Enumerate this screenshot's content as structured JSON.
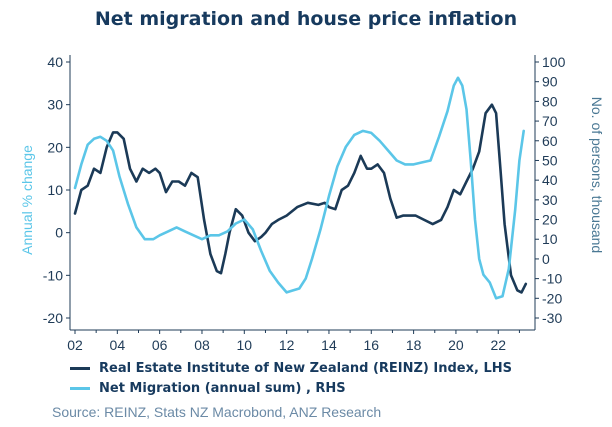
{
  "chart_data": {
    "type": "line",
    "title": "Net migration and house price inflation",
    "ylabel_left": "Annual % change",
    "ylabel_right": "No. of persons, thousand",
    "xlabel": "",
    "x_ticks": [
      "02",
      "04",
      "06",
      "08",
      "10",
      "12",
      "14",
      "16",
      "18",
      "20",
      "22"
    ],
    "xlim": [
      2002,
      2023.5
    ],
    "ylim_left": [
      -20,
      40
    ],
    "ylim_right": [
      -30,
      100
    ],
    "y_ticks_left": [
      40,
      30,
      20,
      10,
      0,
      -10,
      -20
    ],
    "y_ticks_right": [
      100,
      90,
      80,
      70,
      60,
      50,
      40,
      30,
      20,
      10,
      0,
      -10,
      -20,
      -30
    ],
    "grid": false,
    "legend_position": "bottom",
    "series": [
      {
        "name": "Real Estate Institute of New Zealand (REINZ) Index, LHS",
        "axis": "left",
        "color": "#1b3a57",
        "x": [
          2002.0,
          2002.3,
          2002.6,
          2002.9,
          2003.2,
          2003.5,
          2003.8,
          2004.0,
          2004.3,
          2004.6,
          2004.9,
          2005.2,
          2005.5,
          2005.8,
          2006.0,
          2006.3,
          2006.6,
          2006.9,
          2007.2,
          2007.5,
          2007.8,
          2008.1,
          2008.4,
          2008.7,
          2008.9,
          2009.1,
          2009.3,
          2009.6,
          2009.9,
          2010.2,
          2010.5,
          2010.8,
          2011.0,
          2011.3,
          2011.6,
          2012.0,
          2012.5,
          2013.0,
          2013.5,
          2013.8,
          2014.0,
          2014.3,
          2014.6,
          2014.9,
          2015.2,
          2015.5,
          2015.8,
          2016.0,
          2016.3,
          2016.6,
          2016.9,
          2017.2,
          2017.5,
          2017.8,
          2018.1,
          2018.5,
          2018.9,
          2019.3,
          2019.6,
          2019.9,
          2020.2,
          2020.5,
          2020.8,
          2021.1,
          2021.4,
          2021.7,
          2021.9,
          2022.1,
          2022.3,
          2022.6,
          2022.9,
          2023.1,
          2023.3
        ],
        "values": [
          4.5,
          10,
          11,
          15,
          14,
          20,
          23.5,
          23.5,
          22,
          15,
          12,
          15,
          14,
          15,
          14,
          9.5,
          12,
          12,
          11,
          14,
          13,
          3,
          -5,
          -9,
          -9.5,
          -5,
          0,
          5.5,
          4,
          0,
          -2,
          -1,
          0,
          2,
          3,
          4,
          6,
          7,
          6.5,
          7,
          6,
          5.5,
          10,
          11,
          14,
          18,
          15,
          15,
          16,
          14,
          8,
          3.5,
          4,
          4,
          4,
          3,
          2,
          3,
          6,
          10,
          9,
          12,
          15,
          19,
          28,
          30,
          28,
          15,
          2,
          -10,
          -13.5,
          -14,
          -12
        ]
      },
      {
        "name": "Net Migration (annual sum) , RHS",
        "axis": "right",
        "color": "#5bc6e8",
        "x": [
          2002.0,
          2002.3,
          2002.6,
          2002.9,
          2003.2,
          2003.5,
          2003.8,
          2004.1,
          2004.5,
          2004.9,
          2005.3,
          2005.7,
          2006.0,
          2006.4,
          2006.8,
          2007.2,
          2007.6,
          2008.0,
          2008.4,
          2008.8,
          2009.2,
          2009.6,
          2010.0,
          2010.4,
          2010.8,
          2011.2,
          2011.6,
          2012.0,
          2012.3,
          2012.6,
          2012.9,
          2013.2,
          2013.6,
          2014.0,
          2014.4,
          2014.8,
          2015.2,
          2015.6,
          2016.0,
          2016.4,
          2016.8,
          2017.2,
          2017.6,
          2018.0,
          2018.4,
          2018.8,
          2019.2,
          2019.6,
          2019.9,
          2020.1,
          2020.3,
          2020.5,
          2020.7,
          2020.9,
          2021.1,
          2021.3,
          2021.6,
          2021.9,
          2022.2,
          2022.5,
          2022.8,
          2023.0,
          2023.2
        ],
        "values": [
          36,
          48,
          58,
          61,
          62,
          60,
          55,
          42,
          28,
          16,
          10,
          10,
          12,
          14,
          16,
          14,
          12,
          10,
          12,
          12,
          14,
          18,
          20,
          15,
          4,
          -6,
          -12,
          -17,
          -16,
          -15,
          -10,
          0,
          15,
          32,
          47,
          57,
          63,
          65,
          64,
          60,
          55,
          50,
          48,
          48,
          49,
          50,
          62,
          75,
          88,
          92,
          88,
          76,
          50,
          20,
          0,
          -8,
          -12,
          -20,
          -19,
          -5,
          25,
          50,
          65
        ]
      }
    ]
  },
  "legend": {
    "item1": "Real Estate Institute of New Zealand (REINZ) Index, LHS",
    "item2": "Net Migration (annual sum) , RHS"
  },
  "source": "Source: REINZ, Stats NZ Macrobond, ANZ Research",
  "colors": {
    "axis": "#1f3b57",
    "reinz": "#1b3a57",
    "migration": "#5bc6e8",
    "left_label": "#5bc6e8",
    "right_label": "#4a7894"
  }
}
